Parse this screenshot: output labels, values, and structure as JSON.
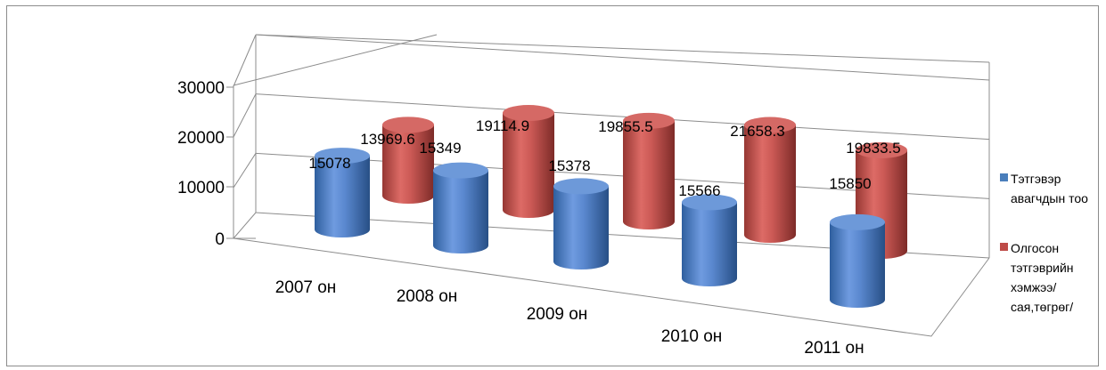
{
  "chart_data": {
    "type": "bar",
    "style": "3d-cylinder",
    "categories": [
      "2007 он",
      "2008 он",
      "2009 он",
      "2010 он",
      "2011 он"
    ],
    "series": [
      {
        "name": "Тэтгэвэр авагчдын тоо",
        "color": "#4a7ebb",
        "values": [
          15078,
          15349,
          15378,
          15566,
          15850
        ]
      },
      {
        "name": "Олгосон тэтгэврийн хэмжээ/ сая,төгрөг/",
        "color": "#be4b48",
        "values": [
          13969.6,
          19114.9,
          19855.5,
          21658.3,
          19833.5
        ]
      }
    ],
    "value_labels": [
      [
        "15078",
        "15349",
        "15378",
        "15566",
        "15850"
      ],
      [
        "13969.6",
        "19114.9",
        "19855.5",
        "21658.3",
        "19833.5"
      ]
    ],
    "y_ticks": [
      "0",
      "10000",
      "20000",
      "30000"
    ],
    "ylim": [
      0,
      30000
    ],
    "grid": true,
    "legend": "right"
  }
}
